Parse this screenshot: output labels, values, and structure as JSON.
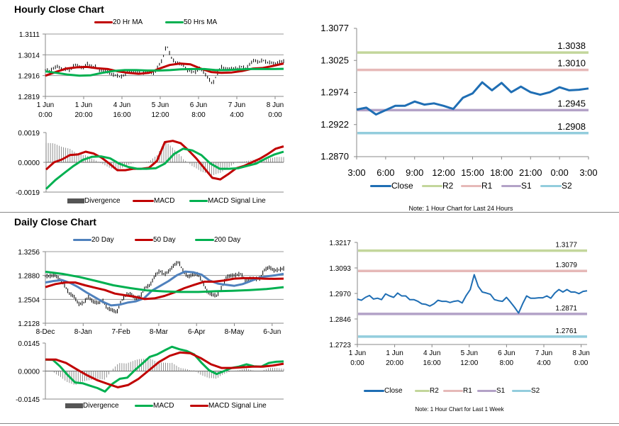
{
  "titles": {
    "hourly": "Hourly Close Chart",
    "daily": "Daily Close Chart"
  },
  "legends": {
    "hourly_price": [
      "20 Hr MA",
      "50 Hrs MA"
    ],
    "hourly_macd": [
      "Divergence",
      "MACD",
      "MACD Signal Line"
    ],
    "day_close": [
      "Close",
      "R2",
      "R1",
      "S1",
      "S2"
    ],
    "daily_price": [
      "20 Day",
      "50 Day",
      "200 Day"
    ],
    "daily_macd": [
      "Divergence",
      "MACD",
      "MACD Signal Line"
    ],
    "week_close": [
      "Close",
      "R2",
      "R1",
      "S1",
      "S2"
    ]
  },
  "notes": {
    "day": "Note: 1 Hour Chart for Last 24 Hours",
    "week": "Note: 1 Hour Chart for  Last 1 Week"
  },
  "colors": {
    "ma20_hr": "#c00000",
    "ma50_hr": "#00b050",
    "close": "#1f6eb4",
    "r2": "#c3d69b",
    "r1": "#e6b9b8",
    "s1": "#b3a2c7",
    "s2": "#93cddd",
    "ma20_day": "#4f81bd",
    "ma50_day": "#c00000",
    "ma200_day": "#00b050",
    "divergence": "#555555"
  },
  "chart_data": [
    {
      "type": "bar+line",
      "name": "hourly_price",
      "ylim": [
        1.2819,
        1.3111
      ],
      "y_ticks": [
        "1.3111",
        "1.3014",
        "1.2916",
        "1.2819"
      ],
      "x_ticks": [
        [
          "1 Jun",
          "0:00"
        ],
        [
          "1 Jun",
          "20:00"
        ],
        [
          "4 Jun",
          "16:00"
        ],
        [
          "5 Jun",
          "12:00"
        ],
        [
          "6 Jun",
          "8:00"
        ],
        [
          "7 Jun",
          "4:00"
        ],
        [
          "8 Jun",
          "0:00"
        ]
      ],
      "grid": true,
      "close": [
        1.2943,
        1.2937,
        1.2951,
        1.296,
        1.2943,
        1.2947,
        1.294,
        1.2968,
        1.2958,
        1.2951,
        1.2972,
        1.2958,
        1.2958,
        1.294,
        1.294,
        1.2932,
        1.292,
        1.2917,
        1.2909,
        1.292,
        1.2937,
        1.2932,
        1.2932,
        1.2926,
        1.2932,
        1.2935,
        1.2924,
        1.296,
        1.2989,
        1.3061,
        1.3004,
        1.2977,
        1.2972,
        1.2966,
        1.294,
        1.2935,
        1.2932,
        1.2951,
        1.2928,
        1.2903,
        1.2875,
        1.292,
        1.2958,
        1.2947,
        1.2947,
        1.2949,
        1.2949,
        1.2958,
        1.2947,
        1.2972,
        1.2989,
        1.2977,
        1.2989,
        1.2977,
        1.2977,
        1.2969,
        1.298,
        1.2983
      ],
      "series": [
        {
          "name": "20 Hr MA",
          "values": [
            1.2916,
            1.2933,
            1.2949,
            1.2955,
            1.2957,
            1.2951,
            1.2947,
            1.2936,
            1.2929,
            1.2925,
            1.2929,
            1.2949,
            1.2966,
            1.2973,
            1.2969,
            1.2949,
            1.2933,
            1.2929,
            1.2931,
            1.2938,
            1.2949,
            1.2952,
            1.2962,
            1.2973
          ]
        },
        {
          "name": "50 Hrs MA",
          "values": [
            1.2936,
            1.2929,
            1.2921,
            1.2916,
            1.2918,
            1.2929,
            1.2938,
            1.2942,
            1.2942,
            1.294,
            1.294,
            1.2942,
            1.2946,
            1.2947,
            1.2947,
            1.2942,
            1.2942,
            1.2945,
            1.2947,
            1.2947,
            1.2947,
            1.2948
          ]
        }
      ]
    },
    {
      "type": "macd",
      "name": "hourly_macd",
      "ylim": [
        -0.0019,
        0.0019
      ],
      "y_ticks": [
        "0.0019",
        "0.0000",
        "-0.0019"
      ],
      "series": [
        {
          "name": "MACD",
          "values": [
            -0.00046,
            0,
            0.00018,
            0.00046,
            0.0005,
            0.00068,
            0.00056,
            0.0003,
            -8e-05,
            -0.0005,
            -0.0005,
            -0.00041,
            -0.00041,
            -0.00035,
            8e-05,
            0.00129,
            0.00137,
            0.00122,
            0.00076,
            0.00023,
            -0.00038,
            -0.00099,
            -0.00109,
            -0.00076,
            -0.00038,
            -0.00023,
            0,
            0.00023,
            0.00053,
            0.00087,
            0.00102
          ]
        },
        {
          "name": "MACD Signal Line",
          "values": [
            -0.0017,
            -0.00114,
            -0.00068,
            -0.00023,
            0.00015,
            0.00035,
            0.00038,
            0.00026,
            -8e-05,
            -0.0003,
            -0.00041,
            -0.00041,
            -0.00038,
            -8e-05,
            0.00053,
            0.00087,
            0.00076,
            0.00046,
            -8e-05,
            -0.00041,
            -0.00041,
            -0.00038,
            -0.00023,
            -8e-05,
            0.00023,
            0.0005,
            0.00068
          ]
        }
      ]
    },
    {
      "type": "line",
      "name": "day_close",
      "ylim": [
        1.287,
        1.3077
      ],
      "y_ticks": [
        "1.3077",
        "1.3025",
        "1.2974",
        "1.2922",
        "1.2870"
      ],
      "x_ticks": [
        "3:00",
        "6:00",
        "9:00",
        "12:00",
        "15:00",
        "18:00",
        "21:00",
        "0:00",
        "3:00"
      ],
      "series": [
        {
          "name": "Close",
          "values": [
            1.2946,
            1.2949,
            1.2938,
            1.2945,
            1.2952,
            1.2952,
            1.2959,
            1.2954,
            1.2956,
            1.2952,
            1.2947,
            1.2965,
            1.2972,
            1.299,
            1.2977,
            1.2989,
            1.2974,
            1.2983,
            1.2974,
            1.297,
            1.2974,
            1.2982,
            1.2977,
            1.2978,
            1.298
          ]
        }
      ],
      "levels": [
        {
          "name": "R2",
          "value": 1.3038,
          "label": "1.3038"
        },
        {
          "name": "R1",
          "value": 1.301,
          "label": "1.3010"
        },
        {
          "name": "S1",
          "value": 1.2945,
          "label": "1.2945"
        },
        {
          "name": "S2",
          "value": 1.2908,
          "label": "1.2908"
        }
      ]
    },
    {
      "type": "bar+line",
      "name": "daily_price",
      "ylim": [
        1.2128,
        1.3256
      ],
      "y_ticks": [
        "1.3256",
        "1.2880",
        "1.2504",
        "1.2128"
      ],
      "x_ticks": [
        "8-Dec",
        "8-Jan",
        "7-Feb",
        "8-Mar",
        "6-Apr",
        "8-May",
        "6-Jun"
      ],
      "grid": true,
      "close": [
        1.2868,
        1.2868,
        1.2883,
        1.2819,
        1.2726,
        1.2595,
        1.2546,
        1.2427,
        1.2446,
        1.2539,
        1.2464,
        1.2446,
        1.2483,
        1.236,
        1.2334,
        1.2296,
        1.2483,
        1.2576,
        1.2584,
        1.2502,
        1.2558,
        1.2688,
        1.2726,
        1.2875,
        1.295,
        1.2894,
        1.295,
        1.3043,
        1.3092,
        1.2931,
        1.2856,
        1.2894,
        1.2894,
        1.2782,
        1.2614,
        1.2576,
        1.2558,
        1.2688,
        1.2856,
        1.2875,
        1.2883,
        1.2905,
        1.28,
        1.283,
        1.2819,
        1.283,
        1.2968,
        1.3006,
        1.2957,
        1.2968,
        1.2987
      ],
      "series": [
        {
          "name": "20 Day",
          "values": [
            1.277,
            1.2793,
            1.2808,
            1.2763,
            1.2696,
            1.2614,
            1.2539,
            1.2464,
            1.2408,
            1.2419,
            1.2453,
            1.2472,
            1.252,
            1.2644,
            1.2718,
            1.2793,
            1.2883,
            1.2942,
            1.2931,
            1.2894,
            1.28,
            1.2752,
            1.2733,
            1.2718,
            1.2744,
            1.2793,
            1.2845,
            1.2868,
            1.2883,
            1.2905
          ]
        },
        {
          "name": "50 Day",
          "values": [
            1.2696,
            1.2744,
            1.277,
            1.277,
            1.2726,
            1.2688,
            1.2651,
            1.2595,
            1.2569,
            1.2546,
            1.2509,
            1.252,
            1.2558,
            1.2614,
            1.2681,
            1.2733,
            1.2782,
            1.2782,
            1.28,
            1.283,
            1.2838,
            1.2838,
            1.283,
            1.2827,
            1.283
          ]
        },
        {
          "name": "200 Day",
          "values": [
            1.2939,
            1.2905,
            1.2856,
            1.2793,
            1.2726,
            1.2681,
            1.2644,
            1.2629,
            1.2621,
            1.2621,
            1.2632,
            1.264,
            1.2651,
            1.2666,
            1.2696
          ]
        }
      ]
    },
    {
      "type": "macd",
      "name": "daily_macd",
      "ylim": [
        -0.0145,
        0.0145
      ],
      "y_ticks": [
        "0.0145",
        "0.0000",
        "-0.0145"
      ],
      "series": [
        {
          "name": "MACD",
          "values": [
            0.006,
            0.0058,
            0.0023,
            -0.0021,
            -0.0059,
            -0.0063,
            -0.0076,
            -0.0088,
            -0.0106,
            -0.0066,
            -0.004,
            -0.0034,
            0.0004,
            0.0038,
            0.0073,
            0.0086,
            0.0107,
            0.0126,
            0.0113,
            0.0104,
            0.0086,
            0.0042,
            0.0004,
            -0.0015,
            0,
            0.0016,
            0.0023,
            0.0035,
            0.0025,
            0.0023,
            0.0042,
            0.0048,
            0.005
          ]
        },
        {
          "name": "MACD Signal Line",
          "values": [
            0.006,
            0.006,
            0.0042,
            0.001,
            -0.0021,
            -0.0047,
            -0.0066,
            -0.0084,
            -0.0072,
            -0.004,
            0.0004,
            0.0048,
            0.0079,
            0.0096,
            0.0092,
            0.0067,
            0.0035,
            0.0016,
            0.0016,
            0.002,
            0.0023,
            0.0023,
            0.0029,
            0.0038
          ]
        }
      ]
    },
    {
      "type": "line",
      "name": "week_close",
      "ylim": [
        1.2723,
        1.3217
      ],
      "y_ticks": [
        "1.3217",
        "1.3093",
        "1.2970",
        "1.2846",
        "1.2723"
      ],
      "x_ticks": [
        [
          "1 Jun",
          "0:00"
        ],
        [
          "1 Jun",
          "20:00"
        ],
        [
          "4 Jun",
          "16:00"
        ],
        [
          "5 Jun",
          "12:00"
        ],
        [
          "6 Jun",
          "8:00"
        ],
        [
          "7 Jun",
          "4:00"
        ],
        [
          "8 Jun",
          "0:00"
        ]
      ],
      "series": [
        {
          "name": "Close",
          "values": [
            1.2943,
            1.2937,
            1.2951,
            1.296,
            1.2943,
            1.2947,
            1.294,
            1.2968,
            1.2958,
            1.2951,
            1.2972,
            1.2958,
            1.2958,
            1.294,
            1.294,
            1.2932,
            1.292,
            1.2917,
            1.2909,
            1.292,
            1.2937,
            1.2932,
            1.2932,
            1.2926,
            1.2932,
            1.2935,
            1.2924,
            1.296,
            1.2989,
            1.3061,
            1.3004,
            1.2977,
            1.2972,
            1.2966,
            1.294,
            1.2935,
            1.2932,
            1.2951,
            1.2928,
            1.2903,
            1.2875,
            1.292,
            1.2958,
            1.2947,
            1.2947,
            1.2949,
            1.2949,
            1.2958,
            1.2947,
            1.2972,
            1.2989,
            1.2977,
            1.2989,
            1.2977,
            1.2977,
            1.2969,
            1.298,
            1.2983
          ]
        }
      ],
      "levels": [
        {
          "name": "R2",
          "value": 1.3177,
          "label": "1.3177"
        },
        {
          "name": "R1",
          "value": 1.3079,
          "label": "1.3079"
        },
        {
          "name": "S1",
          "value": 1.2871,
          "label": "1.2871"
        },
        {
          "name": "S2",
          "value": 1.2761,
          "label": "1.2761"
        }
      ]
    }
  ]
}
